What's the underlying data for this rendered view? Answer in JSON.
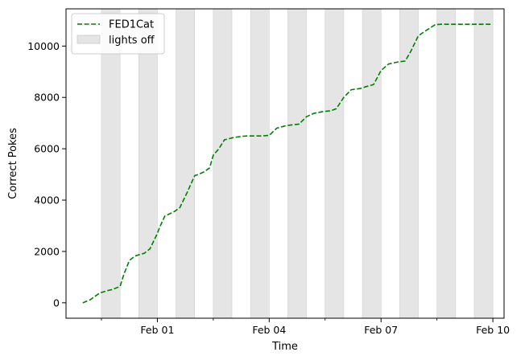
{
  "chart_data": {
    "type": "line",
    "title": "",
    "xlabel": "Time",
    "ylabel": "Correct Pokes",
    "x_unit": "days",
    "x_ticks": [
      {
        "day": 31,
        "label": "Feb 01"
      },
      {
        "day": 34,
        "label": "Feb 04"
      },
      {
        "day": 37,
        "label": "Feb 07"
      },
      {
        "day": 40,
        "label": "Feb 10"
      }
    ],
    "x_minor_ticks": [
      29.5,
      32.5,
      35.5,
      38.5
    ],
    "xlim": [
      28.55,
      40.3
    ],
    "y_ticks": [
      0,
      2000,
      4000,
      6000,
      8000,
      10000
    ],
    "ylim": [
      -600,
      11450
    ],
    "grid": false,
    "legend_position": "top-left",
    "colors": {
      "line": "#008000",
      "shade": "#e5e5e5",
      "shade_edge": "#d0d0d0"
    },
    "series": [
      {
        "name": "FED1Cat",
        "style": "dashed",
        "x": [
          29.0,
          29.2,
          29.45,
          29.65,
          29.8,
          30.0,
          30.1,
          30.25,
          30.4,
          30.5,
          30.65,
          30.8,
          31.0,
          31.05,
          31.2,
          31.35,
          31.45,
          31.6,
          31.8,
          32.0,
          32.1,
          32.25,
          32.4,
          32.5,
          32.65,
          32.8,
          33.0,
          33.1,
          33.25,
          33.4,
          33.5,
          33.65,
          33.8,
          34.0,
          34.2,
          34.45,
          34.6,
          34.8,
          35.0,
          35.2,
          35.45,
          35.65,
          35.8,
          36.0,
          36.2,
          36.45,
          36.6,
          36.8,
          37.0,
          37.2,
          37.45,
          37.65,
          37.8,
          38.0,
          38.2,
          38.45,
          38.6,
          38.8,
          39.0,
          39.2,
          39.45,
          39.6,
          39.8,
          39.95
        ],
        "y": [
          0,
          120,
          380,
          470,
          520,
          640,
          1100,
          1650,
          1820,
          1870,
          1930,
          2100,
          2700,
          2900,
          3380,
          3480,
          3550,
          3700,
          4300,
          4950,
          5000,
          5100,
          5250,
          5750,
          6000,
          6350,
          6420,
          6450,
          6480,
          6500,
          6500,
          6500,
          6500,
          6520,
          6800,
          6900,
          6930,
          6960,
          7250,
          7380,
          7450,
          7480,
          7560,
          8000,
          8300,
          8350,
          8420,
          8500,
          9050,
          9300,
          9380,
          9420,
          9800,
          10400,
          10600,
          10830,
          10850,
          10850,
          10850,
          10850,
          10850,
          10850,
          10850,
          10850
        ]
      }
    ],
    "shaded_regions": {
      "label": "lights off",
      "spans": [
        [
          29.5,
          30.0
        ],
        [
          30.5,
          31.0
        ],
        [
          31.5,
          32.0
        ],
        [
          32.5,
          33.0
        ],
        [
          33.5,
          34.0
        ],
        [
          34.5,
          35.0
        ],
        [
          35.5,
          36.0
        ],
        [
          36.5,
          37.0
        ],
        [
          37.5,
          38.0
        ],
        [
          38.5,
          39.0
        ],
        [
          39.5,
          40.0
        ]
      ]
    }
  }
}
